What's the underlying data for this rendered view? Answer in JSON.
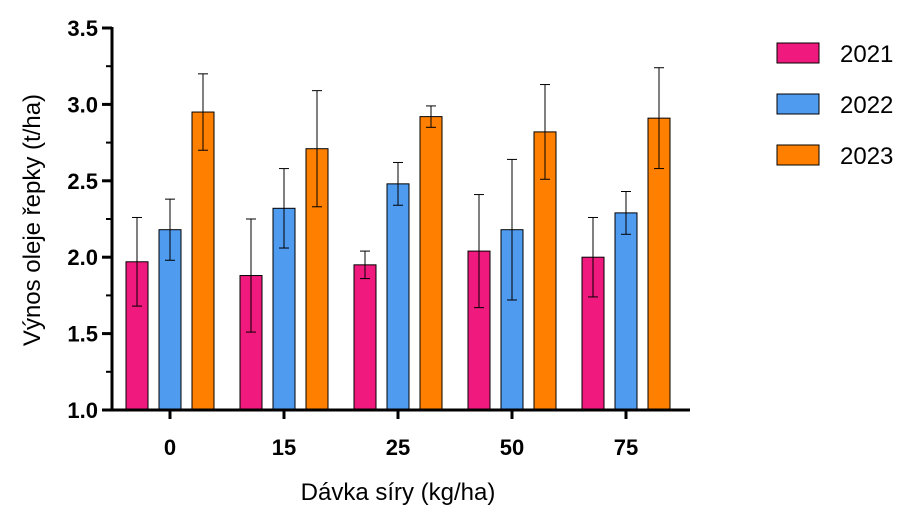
{
  "chart_data": {
    "type": "bar",
    "categories": [
      "0",
      "15",
      "25",
      "50",
      "75"
    ],
    "series": [
      {
        "name": "2021",
        "color": "#F0197D",
        "values": [
          1.97,
          1.88,
          1.95,
          2.04,
          2.0
        ],
        "errors": [
          0.29,
          0.37,
          0.09,
          0.37,
          0.26
        ]
      },
      {
        "name": "2022",
        "color": "#4F9BF0",
        "values": [
          2.18,
          2.32,
          2.48,
          2.18,
          2.29
        ],
        "errors": [
          0.2,
          0.26,
          0.14,
          0.46,
          0.14
        ]
      },
      {
        "name": "2023",
        "color": "#FF8000",
        "values": [
          2.95,
          2.71,
          2.92,
          2.82,
          2.91
        ],
        "errors": [
          0.25,
          0.38,
          0.07,
          0.31,
          0.33
        ]
      }
    ],
    "xlabel": "Dávka síry (kg/ha)",
    "ylabel": "Výnos oleje řepky (t/ha)",
    "ylim": [
      1.0,
      3.5
    ],
    "yticks": [
      "1.0",
      "1.5",
      "2.0",
      "2.5",
      "3.0",
      "3.5"
    ],
    "legend_position": "top-right",
    "grid": false
  }
}
